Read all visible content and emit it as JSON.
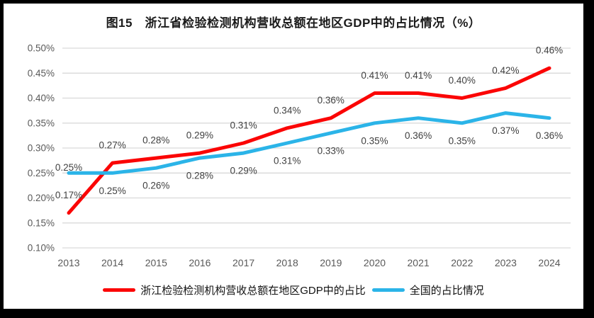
{
  "chart_data": {
    "type": "line",
    "title": "图15　浙江省检验检测机构营收总额在地区GDP中的占比情况（%）",
    "categories": [
      "2013",
      "2014",
      "2015",
      "2016",
      "2017",
      "2018",
      "2019",
      "2020",
      "2021",
      "2022",
      "2023",
      "2024"
    ],
    "series": [
      {
        "name": "浙江检验检测机构营收总额在地区GDP中的占比",
        "color": "#FB0505",
        "values": [
          0.17,
          0.27,
          0.28,
          0.29,
          0.31,
          0.34,
          0.36,
          0.41,
          0.41,
          0.4,
          0.42,
          0.46
        ],
        "labels": [
          "0.17%",
          "0.27%",
          "0.28%",
          "0.29%",
          "0.31%",
          "0.34%",
          "0.36%",
          "0.41%",
          "0.41%",
          "0.40%",
          "0.42%",
          "0.46%"
        ]
      },
      {
        "name": "全国的占比情况",
        "color": "#2BB4E8",
        "values": [
          0.25,
          0.25,
          0.26,
          0.28,
          0.29,
          0.31,
          0.33,
          0.35,
          0.36,
          0.35,
          0.37,
          0.36
        ],
        "labels": [
          "0.25%",
          "0.25%",
          "0.26%",
          "0.28%",
          "0.29%",
          "0.31%",
          "0.33%",
          "0.35%",
          "0.36%",
          "0.35%",
          "0.37%",
          "0.36%"
        ]
      }
    ],
    "ylim": [
      0.1,
      0.5
    ],
    "ytick_step": 0.05,
    "ytick_labels": [
      "0.50%",
      "0.45%",
      "0.40%",
      "0.35%",
      "0.30%",
      "0.25%",
      "0.20%",
      "0.15%",
      "0.10%"
    ],
    "xlabel": "",
    "ylabel": "",
    "grid": "horizontal",
    "legend_position": "bottom",
    "colors": {
      "grid": "#D9D9D9",
      "tick_text": "#595959",
      "label_text": "#404040",
      "frame": "#000000",
      "background": "#FFFFFF"
    }
  }
}
